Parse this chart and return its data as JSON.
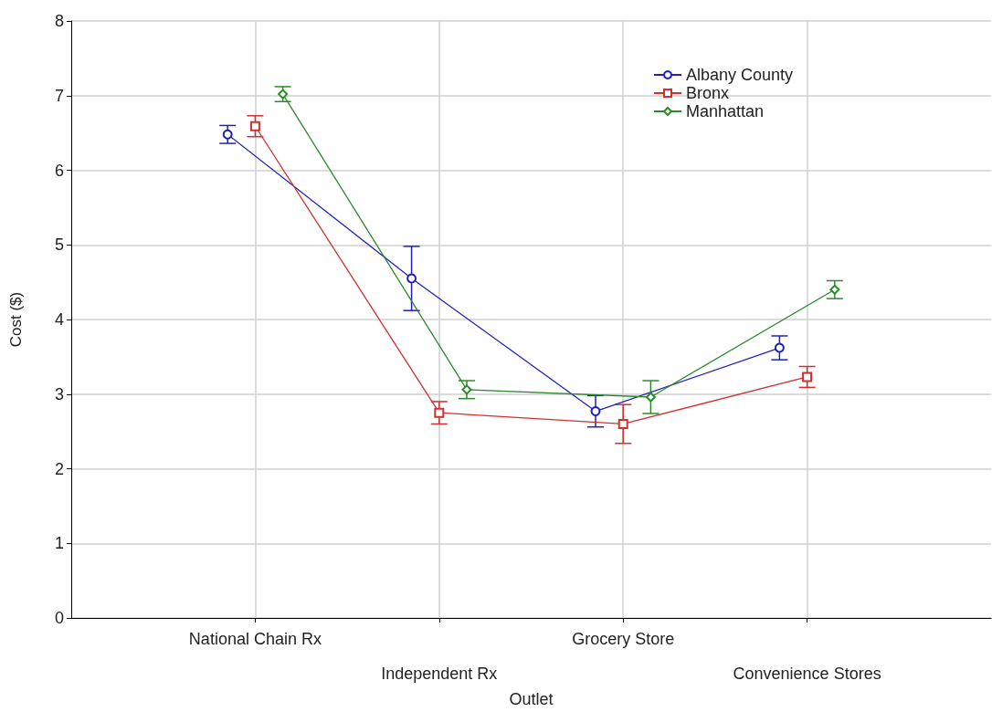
{
  "chart_data": {
    "type": "line",
    "xlabel": "Outlet",
    "ylabel": "Cost ($)",
    "categories": [
      "National Chain Rx",
      "Independent Rx",
      "Grocery Store",
      "Convenience Stores"
    ],
    "series": [
      {
        "name": "Albany County",
        "color": "#2020c0",
        "marker": "circle",
        "values": [
          6.48,
          4.55,
          2.77,
          3.62
        ],
        "errors": [
          0.12,
          0.43,
          0.21,
          0.16
        ]
      },
      {
        "name": "Bronx",
        "color": "#d03030",
        "marker": "square",
        "values": [
          6.59,
          2.75,
          2.6,
          3.23
        ],
        "errors": [
          0.14,
          0.15,
          0.26,
          0.14
        ]
      },
      {
        "name": "Manhattan",
        "color": "#2a8a2a",
        "marker": "diamond",
        "values": [
          7.02,
          3.06,
          2.96,
          4.4
        ],
        "errors": [
          0.1,
          0.12,
          0.22,
          0.12
        ]
      }
    ],
    "ylim": [
      0,
      8
    ],
    "yticks": [
      0,
      1,
      2,
      3,
      4,
      5,
      6,
      7,
      8
    ],
    "grid": true,
    "legend": "top right",
    "line_style": "solid"
  }
}
